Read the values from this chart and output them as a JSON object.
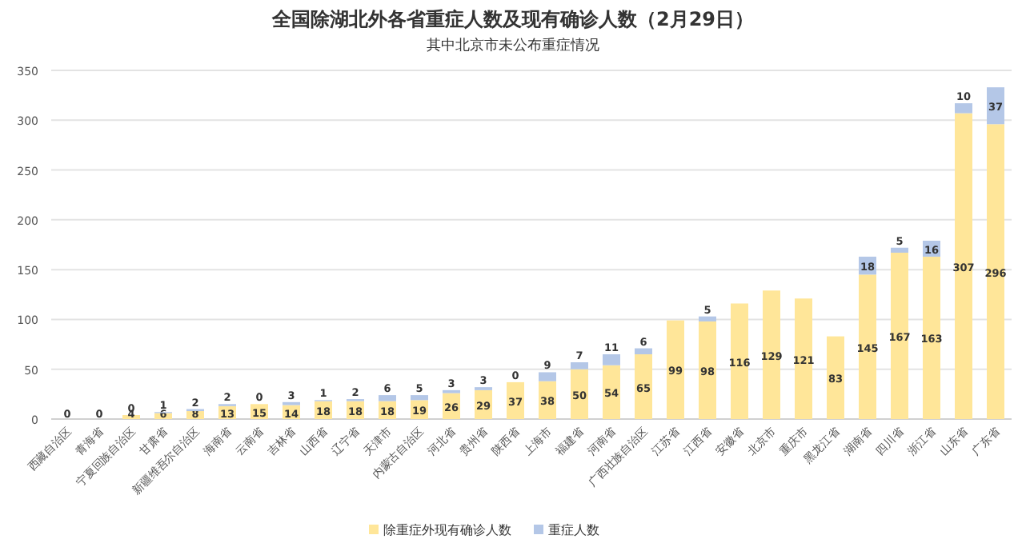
{
  "chart_data": {
    "type": "bar",
    "title": "全国除湖北外各省重症人数及现有确诊人数（2月29日）",
    "subtitle": "其中北京市未公布重症情况",
    "categories": [
      "西藏自治区",
      "青海省",
      "宁夏回族自治区",
      "甘肃省",
      "新疆维吾尔自治区",
      "海南省",
      "云南省",
      "吉林省",
      "山西省",
      "辽宁省",
      "天津市",
      "内蒙古自治区",
      "河北省",
      "贵州省",
      "陕西省",
      "上海市",
      "福建省",
      "河南省",
      "广西壮族自治区",
      "江苏省",
      "江西省",
      "安徽省",
      "北京市",
      "重庆市",
      "黑龙江省",
      "湖南省",
      "四川省",
      "浙江省",
      "山东省",
      "广东省"
    ],
    "stacked": true,
    "data_labels": true,
    "legend": "bottom",
    "grid": "y",
    "ylim": [
      0,
      350
    ],
    "yticks": [
      0,
      50,
      100,
      150,
      200,
      250,
      300,
      350
    ],
    "series": [
      {
        "name": "除重症外现有确诊人数",
        "color": "#ffe699",
        "values": [
          0,
          0,
          4,
          6,
          8,
          13,
          15,
          14,
          18,
          18,
          18,
          19,
          26,
          29,
          37,
          38,
          50,
          54,
          65,
          99,
          98,
          116,
          129,
          121,
          83,
          145,
          167,
          163,
          307,
          296
        ]
      },
      {
        "name": "重症人数",
        "color": "#b4c7e7",
        "values": [
          null,
          null,
          0,
          1,
          2,
          2,
          0,
          3,
          1,
          2,
          6,
          5,
          3,
          3,
          0,
          9,
          7,
          11,
          6,
          null,
          5,
          null,
          null,
          null,
          null,
          18,
          5,
          16,
          10,
          37
        ]
      }
    ]
  }
}
